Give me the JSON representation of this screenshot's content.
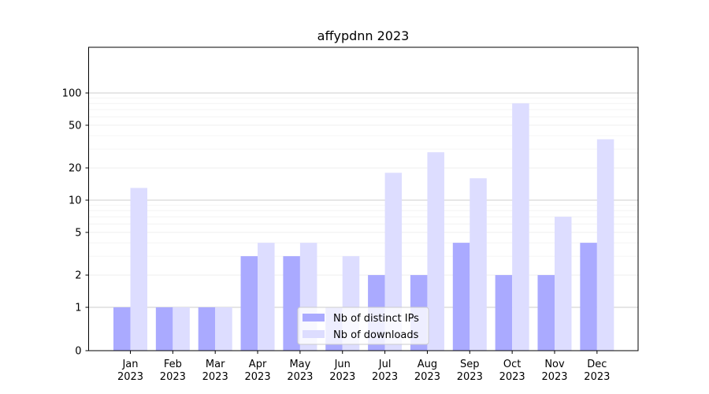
{
  "chart_data": {
    "type": "bar",
    "title": "affypdnn 2023",
    "xlabel": "",
    "ylabel": "",
    "y_scale": "symlog",
    "ylim": [
      0,
      120
    ],
    "y_ticks": [
      0,
      1,
      2,
      5,
      10,
      20,
      50,
      100
    ],
    "grid": true,
    "legend_position": "bottom-center",
    "categories": [
      [
        "Jan",
        "2023"
      ],
      [
        "Feb",
        "2023"
      ],
      [
        "Mar",
        "2023"
      ],
      [
        "Apr",
        "2023"
      ],
      [
        "May",
        "2023"
      ],
      [
        "Jun",
        "2023"
      ],
      [
        "Jul",
        "2023"
      ],
      [
        "Aug",
        "2023"
      ],
      [
        "Sep",
        "2023"
      ],
      [
        "Oct",
        "2023"
      ],
      [
        "Nov",
        "2023"
      ],
      [
        "Dec",
        "2023"
      ]
    ],
    "series": [
      {
        "name": "Nb of distinct IPs",
        "color": "#aaaaff",
        "values": [
          1,
          1,
          1,
          3,
          3,
          1,
          2,
          2,
          4,
          2,
          2,
          4
        ]
      },
      {
        "name": "Nb of downloads",
        "color": "#ddddff",
        "values": [
          13,
          1,
          1,
          4,
          4,
          3,
          18,
          28,
          16,
          80,
          7,
          37
        ]
      }
    ]
  }
}
